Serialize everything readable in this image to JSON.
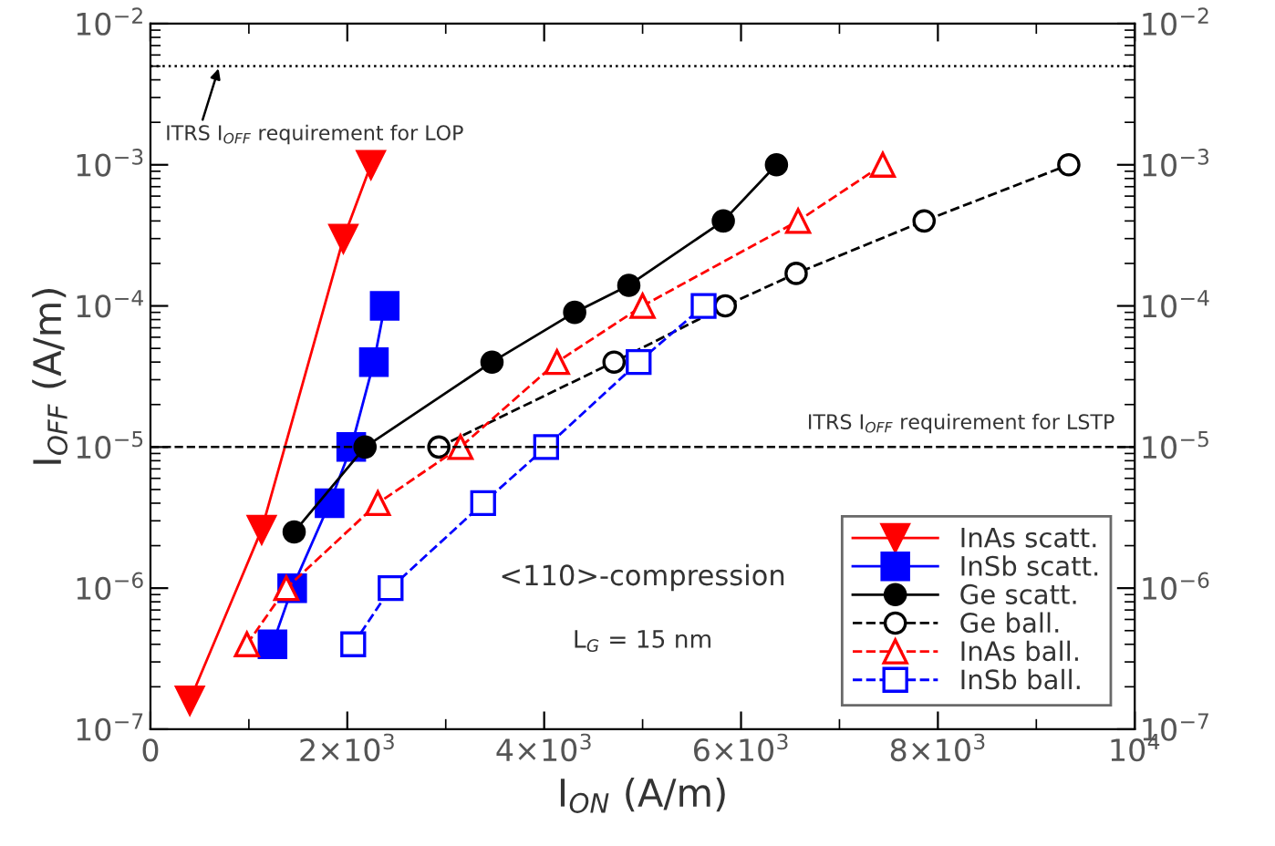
{
  "chart_data": {
    "type": "line",
    "xlabel": "I$_{ON}$ (A/m)",
    "ylabel": "I$_{OFF}$ (A/m)",
    "log": "y",
    "xlim": [
      0,
      10000
    ],
    "ylim": [
      1e-07,
      0.01
    ],
    "xticks": [
      0,
      {
        "value": 2000,
        "label": "2×10$^{3}$"
      },
      {
        "value": 4000,
        "label": "4×10$^{3}$"
      },
      {
        "value": 6000,
        "label": "6×10$^{3}$"
      },
      {
        "value": 8000,
        "label": "8×10$^{3}$"
      },
      {
        "value": 10000,
        "label": "10$^{4}$"
      }
    ],
    "yticks": [
      {
        "value": 1e-07,
        "label": "10$^{−7}$"
      },
      {
        "value": 1e-06,
        "label": "10$^{−6}$"
      },
      {
        "value": 1e-05,
        "label": "10$^{−5}$"
      },
      {
        "value": 0.0001,
        "label": "10$^{−4}$"
      },
      {
        "value": 0.001,
        "label": "10$^{−3}$"
      },
      {
        "value": 0.01,
        "label": "10$^{−2}$"
      }
    ],
    "grid": false,
    "legend": "bottom right",
    "series": [
      {
        "name": "InAs scatt.",
        "color": "#ff0000",
        "marker": "triangle_down",
        "line_style": "solid",
        "x": [
          400,
          1130,
          1960,
          2240
        ],
        "values": [
          1.6e-07,
          2.6e-06,
          0.0003,
          0.001
        ]
      },
      {
        "name": "InSb scatt.",
        "color": "#0000ff",
        "marker": "square",
        "line_style": "solid",
        "x": [
          1240,
          1440,
          1820,
          2040,
          2270,
          2380
        ],
        "values": [
          4e-07,
          1e-06,
          4e-06,
          1e-05,
          4e-05,
          0.0001
        ]
      },
      {
        "name": "Ge scatt.",
        "color": "#000000",
        "marker": "circle",
        "line_style": "solid",
        "x": [
          1460,
          2180,
          3470,
          4310,
          4860,
          5820,
          6360
        ],
        "values": [
          2.5e-06,
          1e-05,
          4e-05,
          9e-05,
          0.00014,
          0.0004,
          0.001
        ]
      },
      {
        "name": "Ge ball.",
        "color": "#000000",
        "marker": "circle",
        "line_style": "dashed",
        "x": [
          2930,
          4710,
          5840,
          6560,
          7860,
          9330
        ],
        "values": [
          1e-05,
          4e-05,
          0.0001,
          0.00017,
          0.0004,
          0.001
        ]
      },
      {
        "name": "InAs ball.",
        "color": "#ff0000",
        "marker": "triangle",
        "line_style": "dashed",
        "x": [
          980,
          1380,
          2310,
          3150,
          4130,
          5000,
          6580,
          7440
        ],
        "values": [
          4e-07,
          1e-06,
          4e-06,
          1e-05,
          4e-05,
          0.0001,
          0.0004,
          0.001
        ]
      },
      {
        "name": "InSb ball.",
        "color": "#0000ff",
        "marker": "square",
        "line_style": "dashed",
        "x": [
          2060,
          2440,
          3380,
          4020,
          4960,
          5620
        ],
        "values": [
          4e-07,
          1e-06,
          4e-06,
          1e-05,
          4e-05,
          0.0001
        ]
      }
    ],
    "ref_lines": [
      {
        "axis": "y",
        "value": 0.005,
        "label": "ITRS I$_{OFF}$ requirement for LOP",
        "color": "#000000",
        "line_style": "dotted"
      },
      {
        "axis": "y",
        "value": 1e-05,
        "label": "ITRS I$_{OFF}$ requirement for LSTP",
        "color": "#000000",
        "line_style": "dashed"
      }
    ],
    "annotations": [
      "<110>-compression",
      "L$_{G}$ = 15 nm"
    ]
  }
}
